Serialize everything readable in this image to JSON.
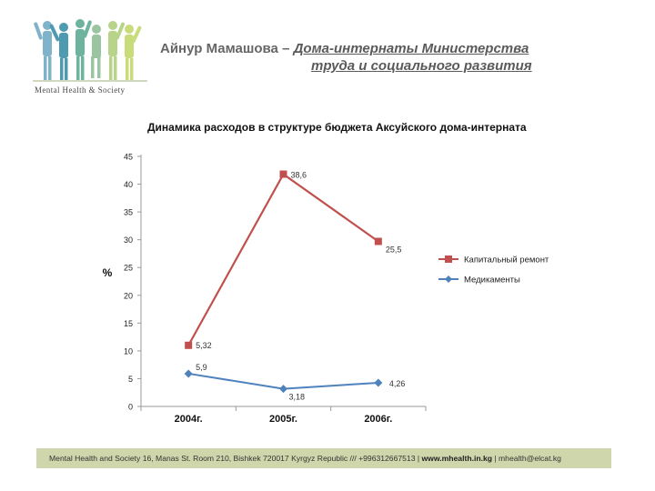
{
  "header": {
    "author": "Айнур Мамашова",
    "dash": "–",
    "title_line1": "Дома-интернаты Министерства",
    "title_line2": "труда и социального развития"
  },
  "logo": {
    "text": "Mental Health & Society"
  },
  "footer": {
    "text_prefix": "Mental Health and Society 16, Manas St. Room 210, Bishkek 720017 Kyrgyz Republic /// +996312667513 | ",
    "website": "www.mhealth.in.kg",
    "text_suffix": " | mhealth@elcat.kg"
  },
  "colors": {
    "series1": "#c0504d",
    "series2": "#4f81bd",
    "footer_bg": "#cfd6ab"
  },
  "chart_data": {
    "type": "line",
    "title": "Динамика расходов в структуре бюджета Аксуйского дома-интерната",
    "ylabel": "%",
    "xlabel": "",
    "ylim": [
      0,
      45
    ],
    "yticks": [
      "0",
      "5",
      "10",
      "15",
      "20",
      "25",
      "30",
      "35",
      "40",
      "45"
    ],
    "categories": [
      "2004г.",
      "2005г.",
      "2006г."
    ],
    "grid": false,
    "legend": "right",
    "series": [
      {
        "name": "Капитальный ремонт",
        "values": [
          11,
          41.8,
          29.7
        ],
        "labels": [
          "5,32",
          "38,6",
          "25,5"
        ],
        "marker": "square"
      },
      {
        "name": "Медикаменты",
        "values": [
          5.9,
          3.18,
          4.26
        ],
        "labels": [
          "5,9",
          "3,18",
          "4,26"
        ],
        "marker": "diamond"
      }
    ]
  }
}
